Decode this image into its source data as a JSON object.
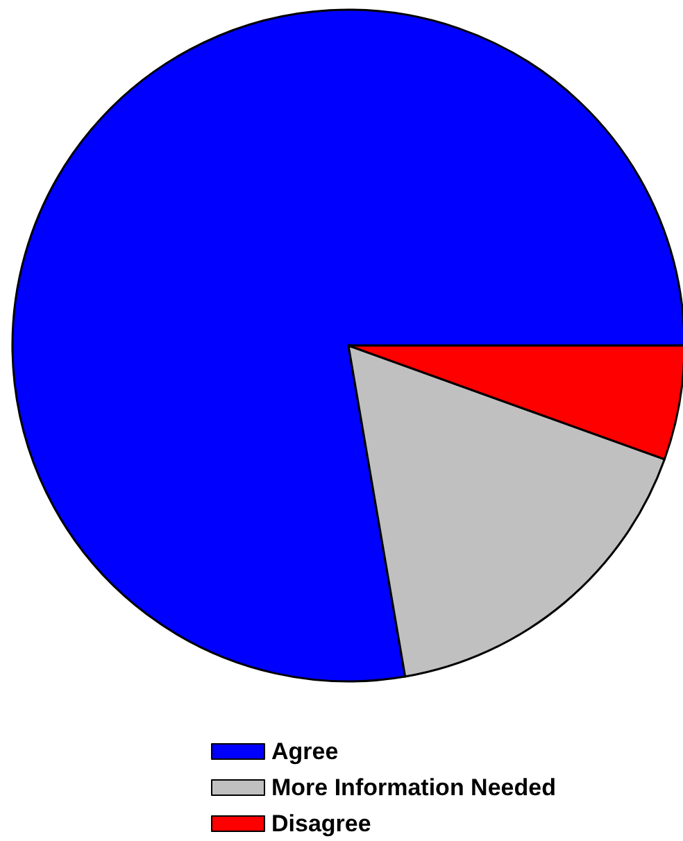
{
  "chart_data": {
    "type": "pie",
    "categories": [
      "Agree",
      "More Information Needed",
      "Disagree"
    ],
    "values": [
      77.7,
      16.8,
      5.5
    ],
    "colors": [
      "#0000ff",
      "#c0c0c0",
      "#ff0000"
    ],
    "legend": "bottom"
  }
}
